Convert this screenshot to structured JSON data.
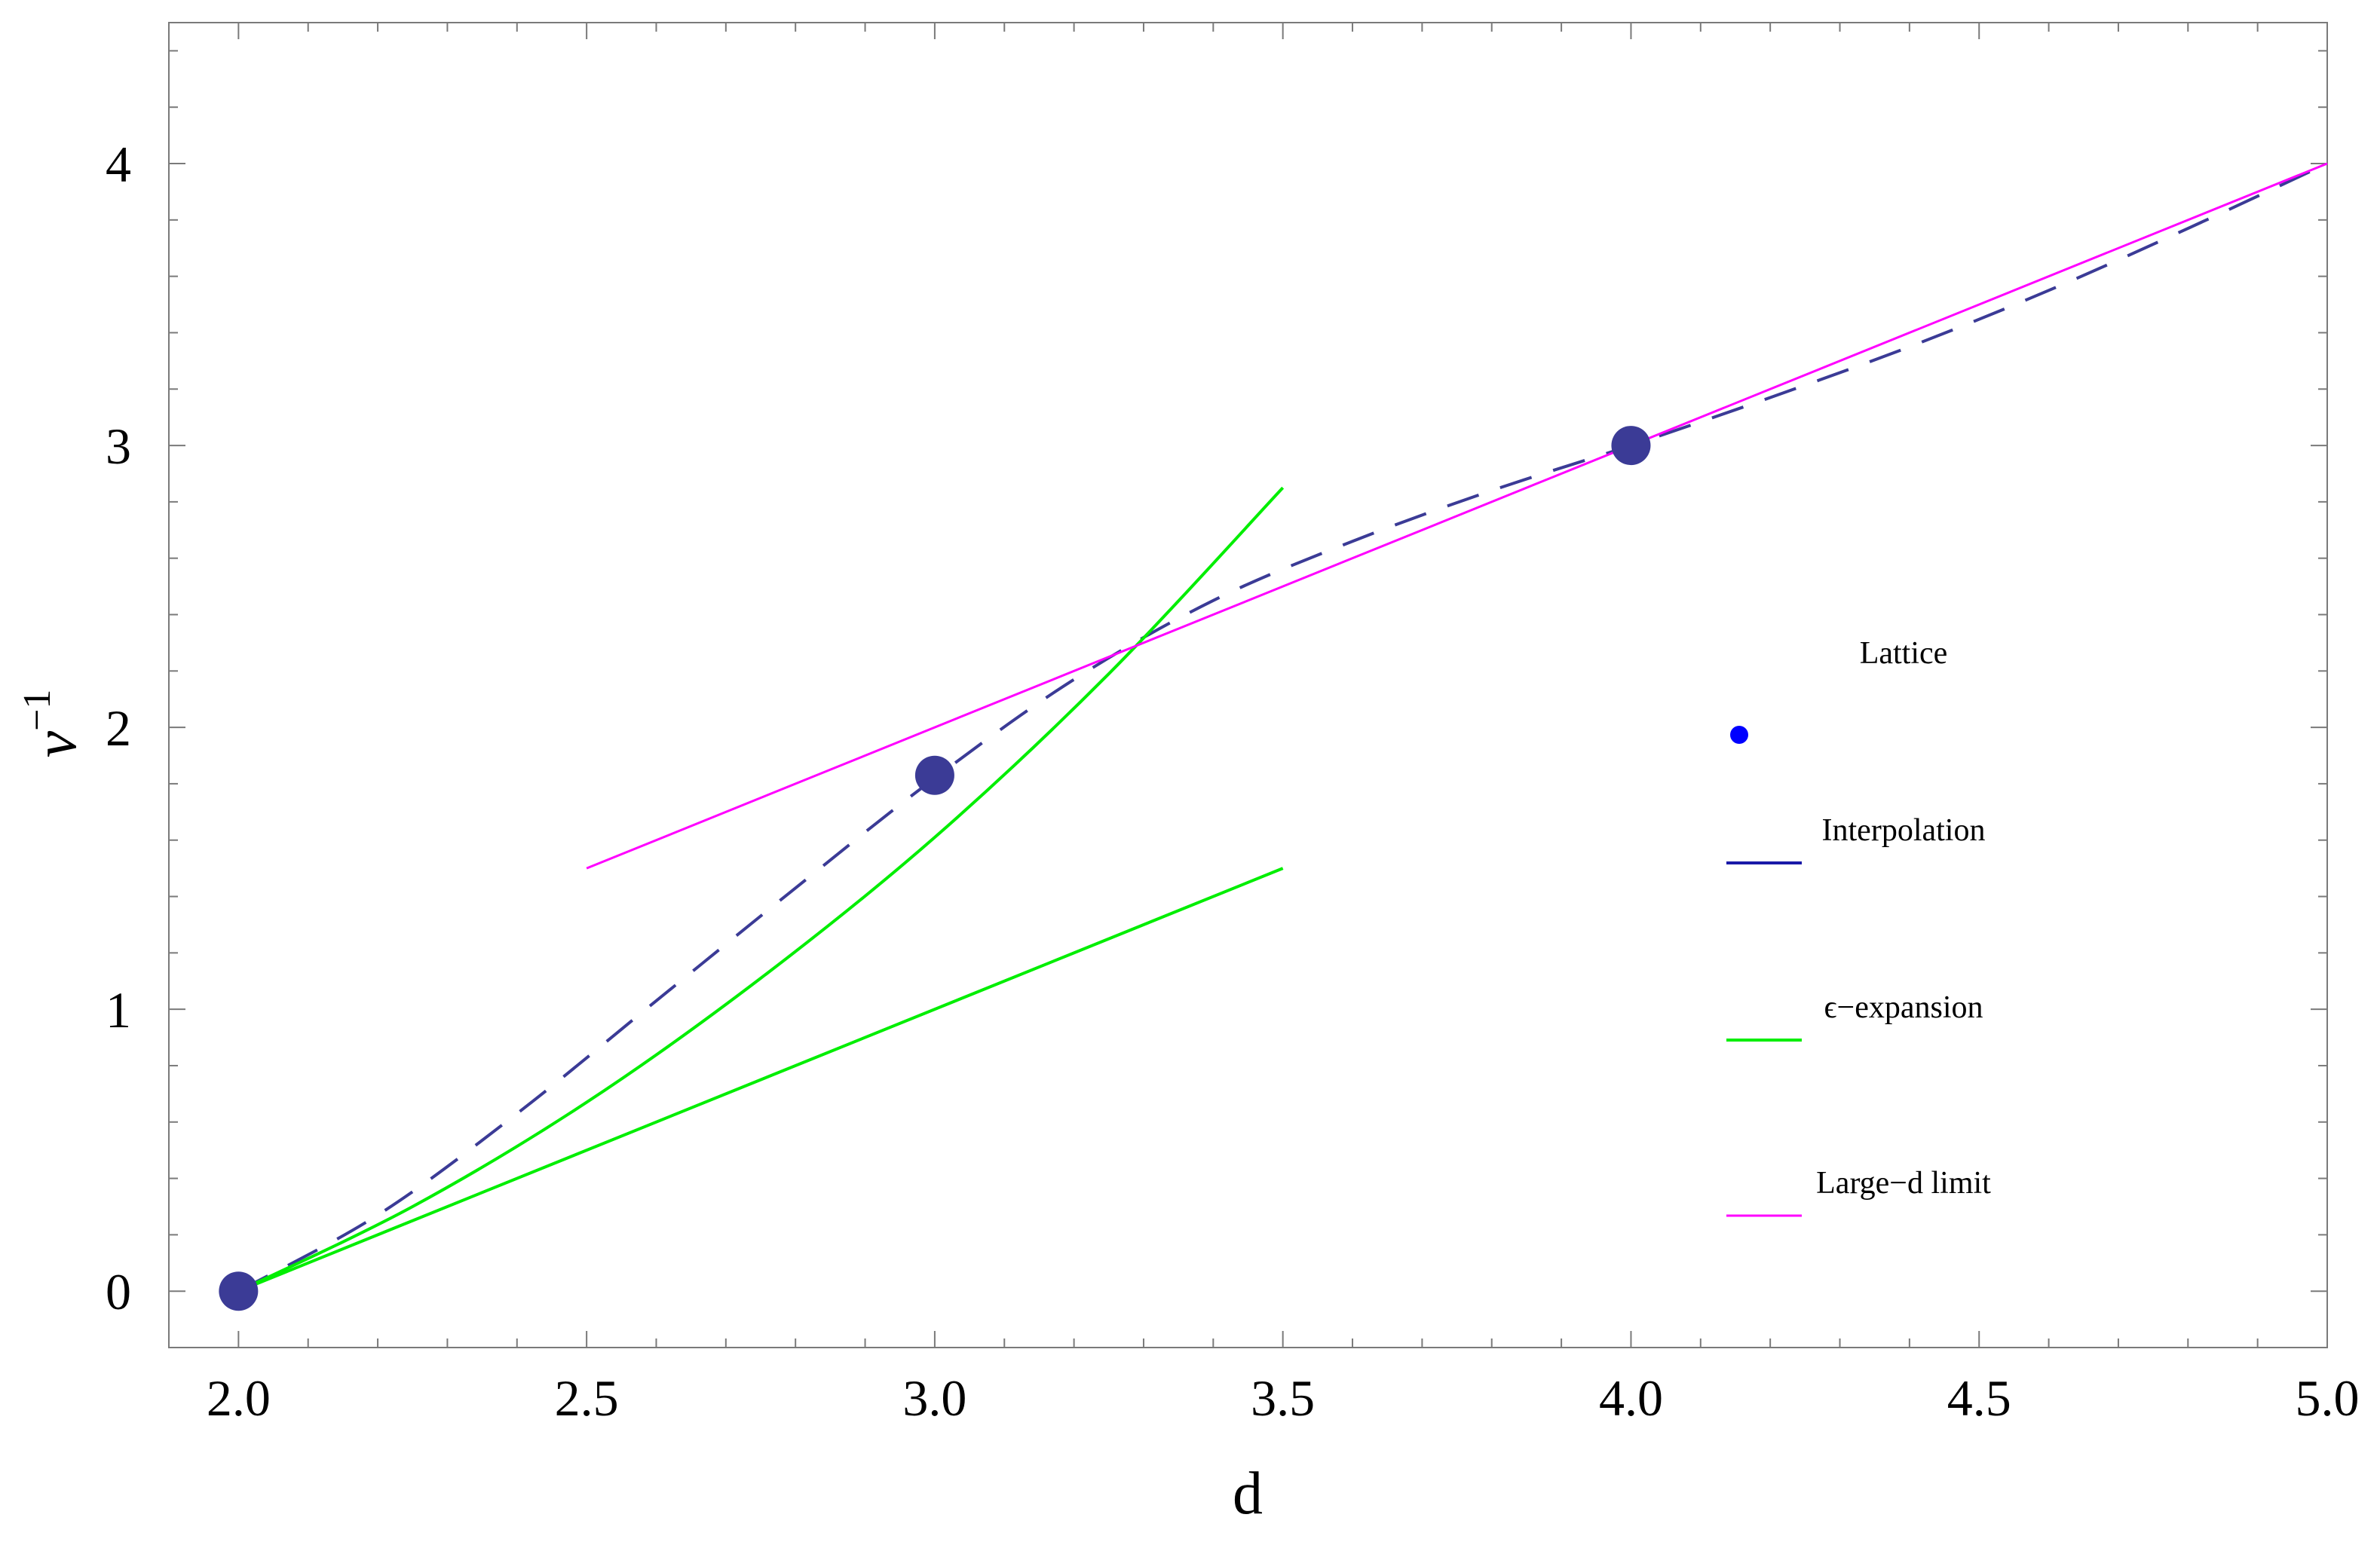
{
  "chart_data": {
    "type": "line",
    "xlabel": "d",
    "ylabel_base": "ν",
    "ylabel_exp": "−1",
    "xlim": [
      1.9,
      5.0
    ],
    "ylim": [
      -0.2,
      4.5
    ],
    "xticks": [
      2.0,
      2.5,
      3.0,
      3.5,
      4.0,
      4.5,
      5.0
    ],
    "xtick_labels": [
      "2.0",
      "2.5",
      "3.0",
      "3.5",
      "4.0",
      "4.5",
      "5.0"
    ],
    "yticks": [
      0,
      1,
      2,
      3,
      4
    ],
    "ytick_labels": [
      "0",
      "1",
      "2",
      "3",
      "4"
    ],
    "grid": false,
    "legend_position": "right",
    "series": [
      {
        "name": "Lattice",
        "kind": "scatter",
        "color": "#3b3b96",
        "legend_color": "#0000ff",
        "x": [
          2.0,
          3.0,
          4.0
        ],
        "y": [
          0.0,
          1.83,
          3.0
        ]
      },
      {
        "name": "Interpolation",
        "kind": "line",
        "dashed": true,
        "color": "#3b3b96",
        "legend_color": "#1a1aa8",
        "x": [
          2.0,
          2.2,
          2.4,
          2.6,
          2.8,
          3.0,
          3.2,
          3.4,
          3.6,
          3.8,
          4.0,
          4.2,
          4.4,
          4.6,
          4.8,
          5.0
        ],
        "y": [
          0.0,
          0.27,
          0.63,
          1.03,
          1.43,
          1.82,
          2.17,
          2.45,
          2.66,
          2.84,
          3.0,
          3.17,
          3.35,
          3.55,
          3.77,
          4.0
        ]
      },
      {
        "name": "ϵ−expansion",
        "kind": "line",
        "color": "#00ee00",
        "legend_color": "#00ee00",
        "x": [
          2.0,
          2.25,
          2.5,
          2.75,
          3.0,
          3.25,
          3.5
        ],
        "y": [
          0.0,
          0.3,
          0.67,
          1.11,
          1.61,
          2.19,
          2.85
        ]
      },
      {
        "name": "",
        "kind": "line",
        "color": "#00ee00",
        "x": [
          2.0,
          3.5
        ],
        "y": [
          0.0,
          1.5
        ]
      },
      {
        "name": "Large−d limit",
        "kind": "line",
        "color": "#ff00ff",
        "legend_color": "#ff00ff",
        "x": [
          2.5,
          5.0
        ],
        "y": [
          1.5,
          4.0
        ]
      }
    ]
  }
}
